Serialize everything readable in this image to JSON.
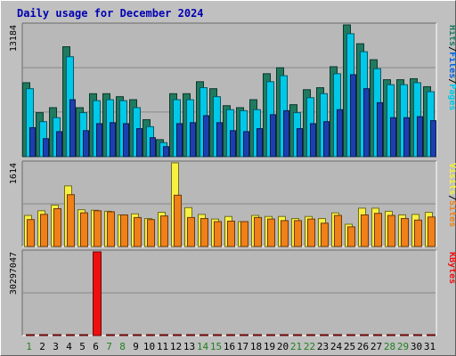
{
  "title": "Daily usage for December 2024",
  "colors": {
    "background": "#c0c0c0",
    "plot_background": "#b8b8b8",
    "hits": "#1f7a60",
    "files": "#00c8e8",
    "pages": "#1c3fb0",
    "visits": "#f8f040",
    "sites": "#f08018",
    "kbytes": "#ee1010",
    "title": "#0000b0"
  },
  "chart_data": [
    {
      "type": "bar",
      "panel": "pages-files-hits",
      "max_label": "13184",
      "ylim": [
        0,
        13184
      ],
      "legend": [
        {
          "label": "Pages",
          "color": "#00c8e8"
        },
        {
          "label": "Files",
          "color": "#0060e0"
        },
        {
          "label": "Hits",
          "color": "#1f7a60"
        }
      ],
      "categories": [
        "1",
        "2",
        "3",
        "4",
        "5",
        "6",
        "7",
        "8",
        "9",
        "10",
        "11",
        "12",
        "13",
        "14",
        "15",
        "16",
        "17",
        "18",
        "19",
        "20",
        "21",
        "22",
        "23",
        "24",
        "25",
        "26",
        "27",
        "28",
        "29",
        "30",
        "31"
      ],
      "series": [
        {
          "name": "Hits",
          "values": [
            7400,
            4400,
            4900,
            11000,
            4900,
            6300,
            6300,
            6000,
            5700,
            3700,
            1700,
            6300,
            6300,
            7500,
            6800,
            5100,
            4900,
            5700,
            8300,
            8900,
            5200,
            6700,
            6900,
            9000,
            13184,
            11300,
            9700,
            7700,
            7700,
            7800,
            7000
          ]
        },
        {
          "name": "Files",
          "values": [
            6800,
            3500,
            3900,
            10000,
            4400,
            5600,
            5700,
            5600,
            4900,
            3000,
            1400,
            5700,
            5700,
            6900,
            6000,
            4700,
            4600,
            4700,
            7500,
            8100,
            4400,
            5900,
            6300,
            8300,
            12300,
            10500,
            8800,
            7200,
            7200,
            7400,
            6500
          ]
        },
        {
          "name": "Pages",
          "values": [
            2900,
            1800,
            2500,
            5700,
            2600,
            3300,
            3400,
            3300,
            2800,
            1900,
            1000,
            3300,
            3400,
            4100,
            3400,
            2600,
            2500,
            2800,
            4200,
            4600,
            2800,
            3300,
            3500,
            4700,
            8200,
            6800,
            5400,
            3900,
            3900,
            4000,
            3600
          ]
        }
      ]
    },
    {
      "type": "bar",
      "panel": "sites-visits",
      "max_label": "1614",
      "ylim": [
        0,
        1614
      ],
      "legend": [
        {
          "label": "Sites",
          "color": "#f08018"
        },
        {
          "label": "Visits",
          "color": "#f8f040"
        }
      ],
      "categories": [
        "1",
        "2",
        "3",
        "4",
        "5",
        "6",
        "7",
        "8",
        "9",
        "10",
        "11",
        "12",
        "13",
        "14",
        "15",
        "16",
        "17",
        "18",
        "19",
        "20",
        "21",
        "22",
        "23",
        "24",
        "25",
        "26",
        "27",
        "28",
        "29",
        "30",
        "31"
      ],
      "series": [
        {
          "name": "Visits",
          "values": [
            600,
            690,
            800,
            1170,
            710,
            700,
            680,
            610,
            630,
            540,
            660,
            1614,
            750,
            620,
            530,
            580,
            480,
            600,
            580,
            580,
            540,
            580,
            540,
            650,
            430,
            740,
            740,
            680,
            610,
            620,
            660
          ]
        },
        {
          "name": "Sites",
          "values": [
            520,
            620,
            730,
            1000,
            650,
            690,
            670,
            610,
            560,
            520,
            590,
            990,
            560,
            540,
            480,
            490,
            480,
            560,
            530,
            500,
            500,
            530,
            450,
            600,
            380,
            610,
            640,
            600,
            540,
            510,
            570
          ]
        }
      ]
    },
    {
      "type": "bar",
      "panel": "kbytes",
      "max_label": "30297047",
      "ylim": [
        0,
        30297047
      ],
      "legend": [
        {
          "label": "KBytes",
          "color": "#ee1010"
        }
      ],
      "categories": [
        "1",
        "2",
        "3",
        "4",
        "5",
        "6",
        "7",
        "8",
        "9",
        "10",
        "11",
        "12",
        "13",
        "14",
        "15",
        "16",
        "17",
        "18",
        "19",
        "20",
        "21",
        "22",
        "23",
        "24",
        "25",
        "26",
        "27",
        "28",
        "29",
        "30",
        "31"
      ],
      "series": [
        {
          "name": "KBytes",
          "values": [
            2600,
            2700,
            1200,
            3100,
            3300,
            30297047,
            1300,
            1200,
            6500,
            900,
            3500,
            2800,
            9000,
            2300,
            900,
            2100,
            2300,
            1500,
            2900,
            1500,
            1400,
            1300,
            4200,
            4700,
            1700,
            4600,
            4100,
            3400,
            3300,
            1400,
            4300
          ]
        }
      ]
    }
  ],
  "x_labels": [
    "1",
    "2",
    "3",
    "4",
    "5",
    "6",
    "7",
    "8",
    "9",
    "10",
    "11",
    "12",
    "13",
    "14",
    "15",
    "16",
    "17",
    "18",
    "19",
    "20",
    "21",
    "22",
    "23",
    "24",
    "25",
    "26",
    "27",
    "28",
    "29",
    "30",
    "31"
  ],
  "weekend_days": [
    1,
    7,
    8,
    14,
    15,
    21,
    22,
    28,
    29
  ],
  "weekend_label_color": "#208020",
  "weekday_label_color": "#000000"
}
